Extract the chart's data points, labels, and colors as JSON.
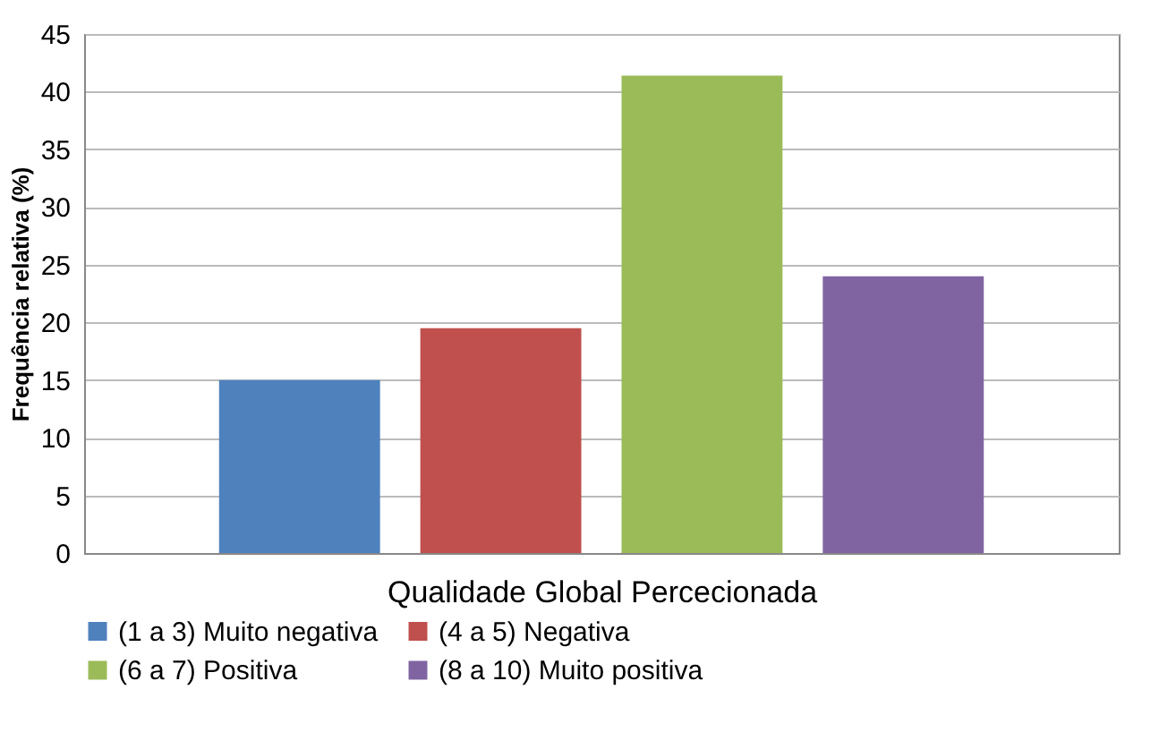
{
  "chart_data": {
    "type": "bar",
    "xlabel": "Qualidade Global Percecionada",
    "ylabel": "Frequência relativa (%)",
    "categories": [
      null
    ],
    "series": [
      {
        "name": "(1 a 3) Muito negativa",
        "color": "#4f81bd",
        "values": [
          15
        ]
      },
      {
        "name": "(4 a 5) Negativa",
        "color": "#c0504d",
        "values": [
          19.5
        ]
      },
      {
        "name": "(6 a 7) Positiva",
        "color": "#9bbb59",
        "values": [
          41.4
        ]
      },
      {
        "name": "(8 a 10) Muito positiva",
        "color": "#8064a2",
        "values": [
          24
        ]
      }
    ],
    "ylim": [
      0,
      45
    ],
    "yticks": [
      0,
      5,
      10,
      15,
      20,
      25,
      30,
      35,
      40,
      45
    ],
    "grid": "y",
    "legend": "bottom"
  }
}
